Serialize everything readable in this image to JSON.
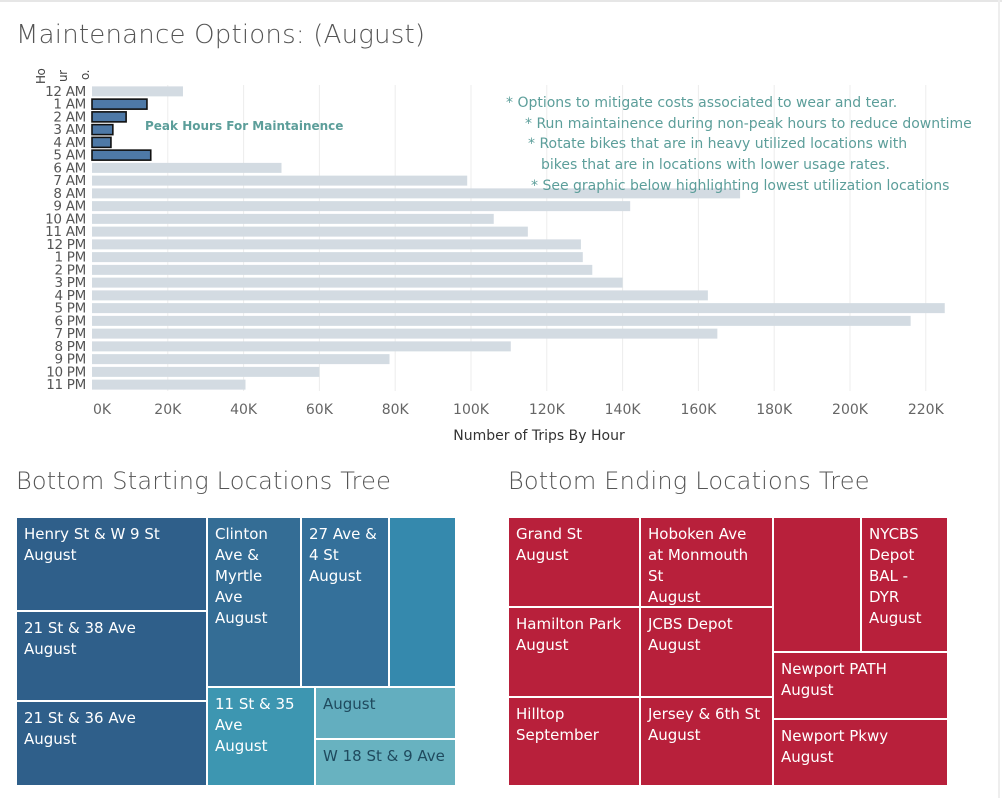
{
  "title": "Maintenance Options: (August)",
  "row_header": [
    "Ho",
    "ur",
    "o."
  ],
  "peak_label": "Peak Hours For Maintainence",
  "notes": [
    "* Options to mitigate costs associated to wear and tear.",
    "* Run maintainence during non-peak hours to reduce downtime",
    "* Rotate bikes that are in heavy utilized locations with",
    "bikes that are in locations with lower usage rates.",
    "* See graphic below highlighting lowest utilization locations"
  ],
  "colors": {
    "bar": "#d3dbe2",
    "highlight_bar": "#4e79a7",
    "highlight_border": "#111111",
    "note_text": "#5c9e9a",
    "start_tree_dark": "#2f5f8a",
    "end_tree": "#b8203b"
  },
  "chart_data": {
    "type": "bar",
    "orientation": "horizontal",
    "xlabel": "Number of Trips By Hour",
    "ylabel": "Hour o.",
    "xlim": [
      0,
      235000
    ],
    "x_ticks": [
      0,
      20000,
      40000,
      60000,
      80000,
      100000,
      120000,
      140000,
      160000,
      180000,
      200000,
      220000
    ],
    "x_tick_labels": [
      "0K",
      "20K",
      "40K",
      "60K",
      "80K",
      "100K",
      "120K",
      "140K",
      "160K",
      "180K",
      "200K",
      "220K"
    ],
    "grid": "vertical",
    "categories": [
      "12 AM",
      "1 AM",
      "2 AM",
      "3 AM",
      "4 AM",
      "5 AM",
      "6 AM",
      "7 AM",
      "8 AM",
      "9 AM",
      "10 AM",
      "11 AM",
      "12 PM",
      "1 PM",
      "2 PM",
      "3 PM",
      "4 PM",
      "5 PM",
      "6 PM",
      "7 PM",
      "8 PM",
      "9 PM",
      "10 PM",
      "11 PM"
    ],
    "values": [
      24000,
      14500,
      9000,
      5500,
      5000,
      15500,
      50000,
      99000,
      171000,
      142000,
      106000,
      115000,
      129000,
      129500,
      132000,
      140000,
      162500,
      225000,
      216000,
      165000,
      110500,
      78500,
      60000,
      40500
    ],
    "highlighted": [
      "1 AM",
      "2 AM",
      "3 AM",
      "4 AM",
      "5 AM"
    ]
  },
  "start_tree": {
    "title": "Bottom Starting Locations Tree",
    "tiles": [
      {
        "name": "Henry St & W 9 St",
        "month": "August",
        "color": "#2f5f8a"
      },
      {
        "name": "21 St & 38 Ave",
        "month": "August",
        "color": "#2f5f8a"
      },
      {
        "name": "21 St & 36 Ave",
        "month": "August",
        "color": "#2f5f8a"
      },
      {
        "name": "Clinton Ave & Myrtle Ave",
        "month": "August",
        "color": "#346d95"
      },
      {
        "name": "27 Ave & 4 St",
        "month": "August",
        "color": "#34709a"
      },
      {
        "name": "",
        "month": "",
        "color": "#3589ad"
      },
      {
        "name": "11 St & 35 Ave",
        "month": "August",
        "color": "#3d96b1"
      },
      {
        "name": "",
        "month": "August",
        "color": "#63aebf"
      },
      {
        "name": "W 18 St & 9 Ave",
        "month": "",
        "color": "#68b2c0"
      }
    ]
  },
  "end_tree": {
    "title": "Bottom Ending Locations Tree",
    "tiles": [
      {
        "name": "Grand St",
        "month": "August",
        "color": "#b8203b"
      },
      {
        "name": "Hamilton Park",
        "month": "August",
        "color": "#b8203b"
      },
      {
        "name": "Hilltop",
        "month": "September",
        "color": "#b8203b"
      },
      {
        "name": "Hoboken Ave at Monmouth St",
        "month": "August",
        "color": "#b8203b"
      },
      {
        "name": "JCBS Depot",
        "month": "August",
        "color": "#b8203b"
      },
      {
        "name": "Jersey & 6th St",
        "month": "August",
        "color": "#b8203b"
      },
      {
        "name": "",
        "month": "",
        "color": "#b8203b"
      },
      {
        "name": "NYCBS Depot BAL - DYR",
        "month": "August",
        "color": "#b8203b"
      },
      {
        "name": "Newport PATH",
        "month": "August",
        "color": "#b8203b"
      },
      {
        "name": "Newport Pkwy",
        "month": "August",
        "color": "#b8203b"
      }
    ]
  }
}
